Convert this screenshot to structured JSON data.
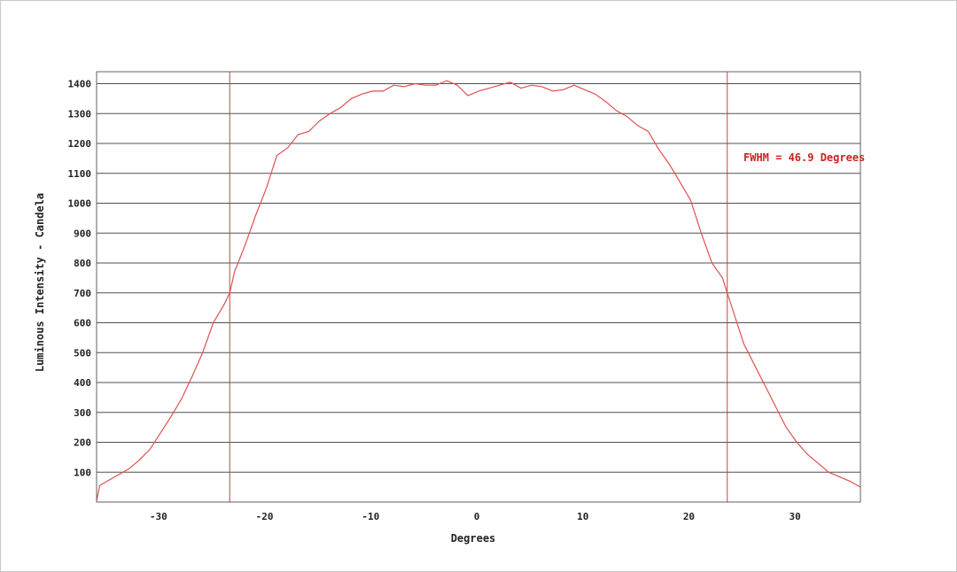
{
  "chart_data": {
    "type": "line",
    "title": "",
    "xlabel": "Degrees",
    "ylabel": "Luminous Intensity - Candela",
    "xlim": [
      -36,
      36
    ],
    "ylim": [
      0,
      1440
    ],
    "xticks": [
      -30,
      -20,
      -10,
      0,
      10,
      20,
      30
    ],
    "yticks": [
      100,
      200,
      300,
      400,
      500,
      600,
      700,
      800,
      900,
      1000,
      1100,
      1200,
      1300,
      1400
    ],
    "grid": "horizontal",
    "legend": "none",
    "vertical_markers": [
      -23.45,
      23.45
    ],
    "annotation": "FWHM = 46.9 Degrees",
    "colors": {
      "series": "#e05050",
      "markers": "#d04040",
      "annotation": "#cc2222",
      "grid": "#505050"
    },
    "series": [
      {
        "x": [
          -36,
          -35.7,
          -35,
          -34,
          -33,
          -32,
          -31,
          -30,
          -29,
          -28,
          -27,
          -26,
          -25,
          -24,
          -23.45,
          -23,
          -22,
          -21,
          -20,
          -19,
          -18,
          -17,
          -16,
          -15,
          -14,
          -13,
          -12,
          -11,
          -10,
          -9,
          -8,
          -7,
          -6,
          -5,
          -4,
          -3,
          -2,
          -1,
          0,
          1,
          2,
          3,
          4,
          5,
          6,
          7,
          8,
          9,
          10,
          11,
          12,
          13,
          14,
          15,
          16,
          17,
          18,
          19,
          20,
          21,
          22,
          23,
          23.45,
          24,
          25,
          26,
          27,
          28,
          29,
          30,
          31,
          32,
          33,
          34,
          35,
          36
        ],
        "y": [
          5,
          55,
          70,
          90,
          110,
          140,
          175,
          230,
          285,
          345,
          420,
          500,
          600,
          660,
          700,
          770,
          860,
          960,
          1050,
          1160,
          1185,
          1230,
          1240,
          1275,
          1300,
          1320,
          1350,
          1365,
          1375,
          1375,
          1395,
          1390,
          1400,
          1395,
          1395,
          1410,
          1395,
          1360,
          1375,
          1385,
          1395,
          1405,
          1385,
          1395,
          1390,
          1375,
          1380,
          1395,
          1380,
          1365,
          1340,
          1310,
          1290,
          1260,
          1240,
          1180,
          1130,
          1070,
          1010,
          900,
          800,
          750,
          700,
          640,
          530,
          460,
          390,
          320,
          250,
          200,
          160,
          130,
          100,
          85,
          70,
          50
        ]
      }
    ]
  }
}
